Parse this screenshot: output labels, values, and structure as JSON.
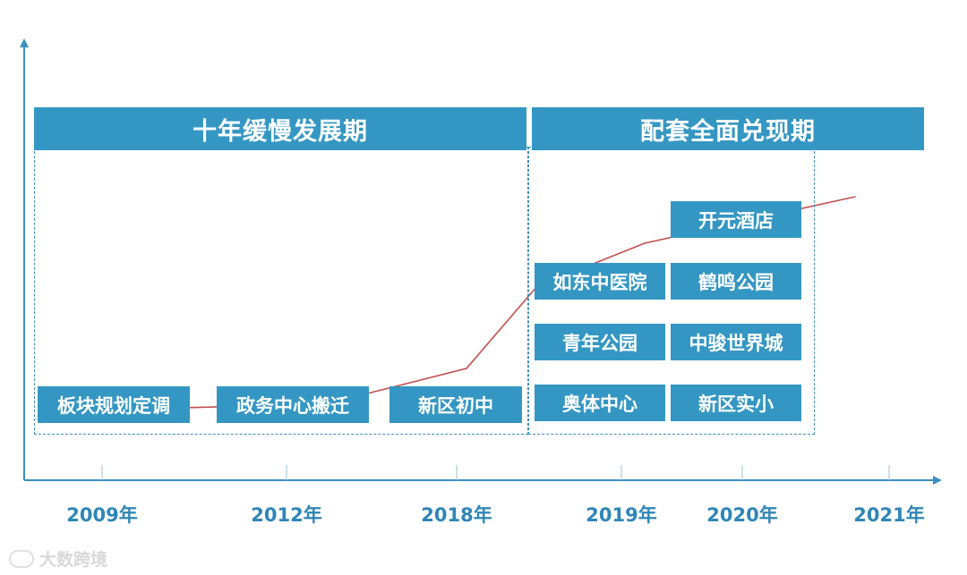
{
  "chart_data": {
    "type": "line",
    "categories": [
      "2009年",
      "2012年",
      "2018年",
      "2019年",
      "2020年",
      "2021年"
    ],
    "series": [
      {
        "values": [
          10,
          12,
          22,
          45,
          57,
          70
        ]
      }
    ],
    "ylim": [
      0,
      100
    ],
    "grid": false,
    "colors": {
      "line": "#c0504d",
      "axis": "#3a8fc1",
      "box": "#3497c3"
    }
  },
  "phases": [
    {
      "label": "十年缓慢发展期"
    },
    {
      "label": "配套全面兑现期"
    }
  ],
  "events": [
    {
      "label": "板块规划定调"
    },
    {
      "label": "政务中心搬迁"
    },
    {
      "label": "新区初中"
    },
    {
      "label": "如东中医院"
    },
    {
      "label": "青年公园"
    },
    {
      "label": "奥体中心"
    },
    {
      "label": "开元酒店"
    },
    {
      "label": "鹤鸣公园"
    },
    {
      "label": "中骏世界城"
    },
    {
      "label": "新区实小"
    }
  ],
  "watermark": {
    "text": "大数跨境",
    "icon": "cloud-logo-icon"
  }
}
